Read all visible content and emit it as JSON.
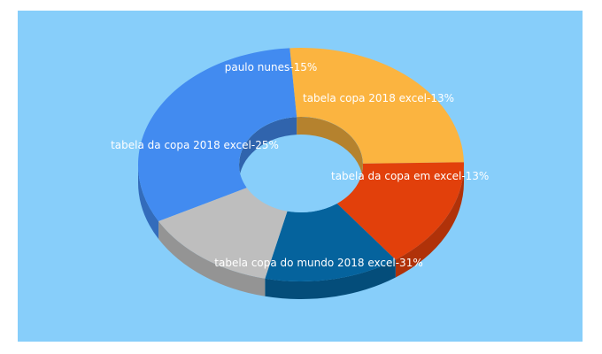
{
  "chart_data": {
    "type": "pie",
    "title": "",
    "background_color": "#87cefa",
    "slices": [
      {
        "label": "tabela copa do mundo 2018 excel",
        "value": 31,
        "label_text": "tabela copa do mundo 2018 excel-31%",
        "color": "#428bf0"
      },
      {
        "label": "tabela da copa 2018 excel",
        "value": 25,
        "label_text": "tabela da copa 2018 excel-25%",
        "color": "#fbb440"
      },
      {
        "label": "paulo nunes",
        "value": 15,
        "label_text": "paulo nunes-15%",
        "color": "#e2400b"
      },
      {
        "label": "tabela copa 2018 excel",
        "value": 13,
        "label_text": "tabela copa 2018 excel-13%",
        "color": "#05639d"
      },
      {
        "label": "tabela da copa em excel",
        "value": 13,
        "label_text": "tabela da copa em excel-13%",
        "color": "#bebebe"
      }
    ]
  }
}
